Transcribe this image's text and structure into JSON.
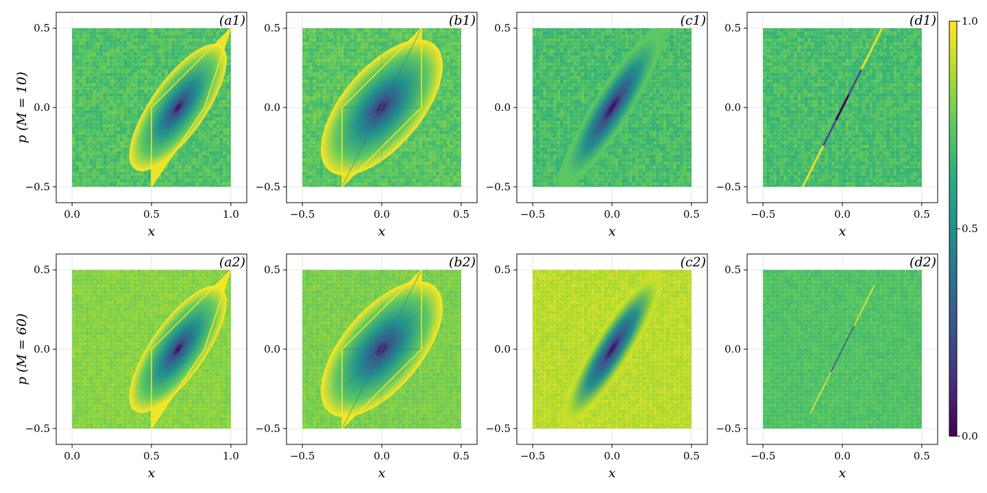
{
  "chart_data": {
    "type": "heatmap",
    "colormap": "viridis",
    "value_range": [
      0.0,
      1.0
    ],
    "colorbar": {
      "ticks": [
        0.0,
        0.5,
        1.0
      ],
      "tick_labels": [
        "0.0",
        "0.5",
        "1.0"
      ]
    },
    "row_labels": [
      {
        "text": "p (M = 10)",
        "M": 10
      },
      {
        "text": "p (M = 60)",
        "M": 60
      }
    ],
    "xlabel": "x",
    "ylim": [
      -0.6,
      0.6
    ],
    "y_ticks": [
      -0.5,
      0.0,
      0.5
    ],
    "y_tick_labels": [
      "−0.5",
      "0.0",
      "0.5"
    ],
    "panels": [
      {
        "label": "(a1)",
        "row": 0,
        "col": 0,
        "xlim": [
          -0.1,
          1.1
        ],
        "x_ticks": [
          0.0,
          0.5,
          1.0
        ],
        "x_tick_labels": [
          "0.0",
          "0.5",
          "1.0"
        ],
        "data_x": [
          0.0,
          1.0
        ],
        "data_y": [
          -0.5,
          0.5
        ],
        "background_level": 0.72,
        "feature": "triangle",
        "feature_center": [
          0.667,
          0.0
        ]
      },
      {
        "label": "(b1)",
        "row": 0,
        "col": 1,
        "xlim": [
          -0.6,
          0.6
        ],
        "x_ticks": [
          -0.5,
          0.0,
          0.5
        ],
        "x_tick_labels": [
          "−0.5",
          "0.0",
          "0.5"
        ],
        "data_x": [
          -0.5,
          0.5
        ],
        "data_y": [
          -0.5,
          0.5
        ],
        "background_level": 0.74,
        "feature": "rhombus",
        "feature_center": [
          0.0,
          0.0
        ]
      },
      {
        "label": "(c1)",
        "row": 0,
        "col": 2,
        "xlim": [
          -0.6,
          0.6
        ],
        "x_ticks": [
          -0.5,
          0.0,
          0.5
        ],
        "x_tick_labels": [
          "−0.5",
          "0.0",
          "0.5"
        ],
        "data_x": [
          -0.5,
          0.5
        ],
        "data_y": [
          -0.5,
          0.5
        ],
        "background_level": 0.7,
        "feature": "ellipse",
        "feature_center": [
          0.0,
          0.0
        ]
      },
      {
        "label": "(d1)",
        "row": 0,
        "col": 3,
        "xlim": [
          -0.6,
          0.6
        ],
        "x_ticks": [
          -0.5,
          0.0,
          0.5
        ],
        "x_tick_labels": [
          "−0.5",
          "0.0",
          "0.5"
        ],
        "data_x": [
          -0.5,
          0.5
        ],
        "data_y": [
          -0.5,
          0.5
        ],
        "background_level": 0.7,
        "feature": "line",
        "feature_center": [
          0.0,
          0.0
        ]
      },
      {
        "label": "(a2)",
        "row": 1,
        "col": 0,
        "xlim": [
          -0.1,
          1.1
        ],
        "x_ticks": [
          0.0,
          0.5,
          1.0
        ],
        "x_tick_labels": [
          "0.0",
          "0.5",
          "1.0"
        ],
        "data_x": [
          0.0,
          1.0
        ],
        "data_y": [
          -0.5,
          0.5
        ],
        "background_level": 0.82,
        "feature": "triangle",
        "feature_center": [
          0.667,
          0.0
        ]
      },
      {
        "label": "(b2)",
        "row": 1,
        "col": 1,
        "xlim": [
          -0.6,
          0.6
        ],
        "x_ticks": [
          -0.5,
          0.0,
          0.5
        ],
        "x_tick_labels": [
          "−0.5",
          "0.0",
          "0.5"
        ],
        "data_x": [
          -0.5,
          0.5
        ],
        "data_y": [
          -0.5,
          0.5
        ],
        "background_level": 0.8,
        "feature": "rhombus",
        "feature_center": [
          0.0,
          0.0
        ]
      },
      {
        "label": "(c2)",
        "row": 1,
        "col": 2,
        "xlim": [
          -0.6,
          0.6
        ],
        "x_ticks": [
          -0.5,
          0.0,
          0.5
        ],
        "x_tick_labels": [
          "−0.5",
          "0.0",
          "0.5"
        ],
        "data_x": [
          -0.5,
          0.5
        ],
        "data_y": [
          -0.5,
          0.5
        ],
        "background_level": 0.9,
        "feature": "ellipse",
        "feature_center": [
          0.0,
          0.0
        ]
      },
      {
        "label": "(d2)",
        "row": 1,
        "col": 3,
        "xlim": [
          -0.6,
          0.6
        ],
        "x_ticks": [
          -0.5,
          0.0,
          0.5
        ],
        "x_tick_labels": [
          "−0.5",
          "0.0",
          "0.5"
        ],
        "data_x": [
          -0.5,
          0.5
        ],
        "data_y": [
          -0.5,
          0.5
        ],
        "background_level": 0.72,
        "feature": "dotted-line",
        "feature_center": [
          0.0,
          0.0
        ]
      }
    ]
  }
}
